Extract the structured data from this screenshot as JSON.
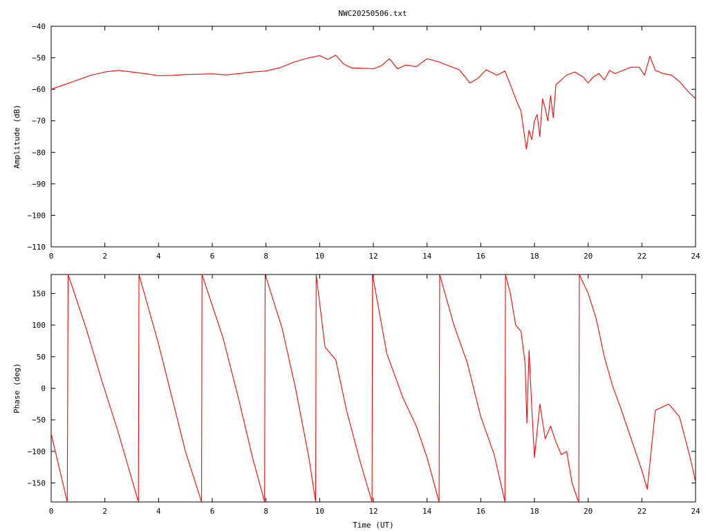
{
  "title": "NWC20250506.txt",
  "colors": {
    "trace": "#ff0000",
    "axes": "#000000",
    "background": "#ffffff"
  },
  "chart_data": [
    {
      "type": "line",
      "ylabel": "Amplitude (dB)",
      "xlabel": "",
      "xlim": [
        0,
        24
      ],
      "ylim": [
        -110,
        -40
      ],
      "x_ticks": [
        0,
        2,
        4,
        6,
        8,
        10,
        12,
        14,
        16,
        18,
        20,
        22,
        24
      ],
      "y_ticks": [
        -40,
        -50,
        -60,
        -70,
        -80,
        -90,
        -100,
        -110
      ],
      "x_tick_labels": [
        "0",
        "2",
        "4",
        "6",
        "8",
        "10",
        "12",
        "14",
        "16",
        "18",
        "20",
        "22",
        "24"
      ],
      "y_tick_labels": [
        "−40",
        "−50",
        "−60",
        "−70",
        "−80",
        "−90",
        "−100",
        "−110"
      ],
      "grid": false,
      "series": [
        {
          "x": [
            0,
            0.5,
            1,
            1.5,
            2,
            2.5,
            3,
            3.5,
            4,
            4.5,
            5,
            5.5,
            6,
            6.5,
            7,
            7.5,
            8,
            8.5,
            9,
            9.5,
            10,
            10.3,
            10.6,
            10.9,
            11.2,
            11.5,
            12,
            12.3,
            12.6,
            12.9,
            13.2,
            13.6,
            14,
            14.4,
            14.8,
            15.2,
            15.6,
            15.9,
            16.2,
            16.6,
            16.9,
            17.1,
            17.3,
            17.5,
            17.7,
            17.8,
            17.9,
            18.0,
            18.1,
            18.2,
            18.3,
            18.4,
            18.5,
            18.6,
            18.7,
            18.8,
            19.0,
            19.2,
            19.5,
            19.8,
            20.0,
            20.2,
            20.4,
            20.6,
            20.8,
            21.0,
            21.3,
            21.6,
            21.9,
            22.1,
            22.3,
            22.5,
            22.8,
            23.1,
            23.4,
            23.7,
            24
          ],
          "y": [
            -60,
            -58.5,
            -57,
            -55.5,
            -54.5,
            -54,
            -54.5,
            -55,
            -55.7,
            -55.6,
            -55.3,
            -55.2,
            -55.1,
            -55.4,
            -55,
            -54.5,
            -54.2,
            -53.2,
            -51.5,
            -50.2,
            -49.3,
            -50.5,
            -49.2,
            -52,
            -53.2,
            -53.3,
            -53.5,
            -52.5,
            -50.3,
            -53.5,
            -52.3,
            -52.8,
            -50.3,
            -51.2,
            -52.5,
            -53.8,
            -58,
            -56.5,
            -53.8,
            -55.5,
            -54.2,
            -58.5,
            -63,
            -67,
            -79,
            -73,
            -76,
            -70,
            -68,
            -75,
            -63,
            -66,
            -70,
            -62,
            -69,
            -58.5,
            -57,
            -55.5,
            -54.5,
            -56,
            -58,
            -56,
            -55,
            -57,
            -54,
            -55,
            -54,
            -53,
            -53,
            -55.5,
            -49.5,
            -54,
            -55,
            -55.5,
            -57.5,
            -60.5,
            -63
          ]
        }
      ]
    },
    {
      "type": "line",
      "ylabel": "Phase (deg)",
      "xlabel": "Time (UT)",
      "xlim": [
        0,
        24
      ],
      "ylim": [
        -180,
        180
      ],
      "x_ticks": [
        0,
        2,
        4,
        6,
        8,
        10,
        12,
        14,
        16,
        18,
        20,
        22,
        24
      ],
      "y_ticks": [
        150,
        100,
        50,
        0,
        -50,
        -100,
        -150
      ],
      "x_tick_labels": [
        "0",
        "2",
        "4",
        "6",
        "8",
        "10",
        "12",
        "14",
        "16",
        "18",
        "20",
        "22",
        "24"
      ],
      "y_tick_labels": [
        "150",
        "100",
        "50",
        "0",
        "−50",
        "−100",
        "−150"
      ],
      "grid": false,
      "series": [
        {
          "segments": [
            {
              "x": [
                0,
                0.6
              ],
              "y": [
                -72,
                -180
              ]
            },
            {
              "x": [
                0.6,
                0.63,
                1.3,
                1.9,
                2.5,
                3.25
              ],
              "y": [
                -180,
                180,
                95,
                10,
                -70,
                -180
              ]
            },
            {
              "x": [
                3.25,
                3.27,
                4.0,
                4.5,
                5.0,
                5.6
              ],
              "y": [
                -180,
                180,
                70,
                -15,
                -100,
                -180
              ]
            },
            {
              "x": [
                5.6,
                5.62,
                6.4,
                7.0,
                7.5,
                7.95
              ],
              "y": [
                -180,
                180,
                80,
                -20,
                -110,
                -180
              ]
            },
            {
              "x": [
                7.95,
                7.97,
                8.6,
                9.1,
                9.6,
                9.85
              ],
              "y": [
                -180,
                180,
                95,
                0,
                -110,
                -180
              ]
            },
            {
              "x": [
                9.85,
                9.87,
                10.2,
                10.6,
                11.0,
                11.5,
                11.95
              ],
              "y": [
                -180,
                180,
                65,
                45,
                -35,
                -115,
                -180
              ]
            },
            {
              "x": [
                11.95,
                11.97,
                12.5,
                13.1,
                13.6,
                14.0,
                14.45
              ],
              "y": [
                -180,
                180,
                55,
                -15,
                -60,
                -110,
                -180
              ]
            },
            {
              "x": [
                14.45,
                14.47,
                15.0,
                15.5,
                16.0,
                16.5,
                16.9
              ],
              "y": [
                -180,
                180,
                100,
                40,
                -45,
                -105,
                -180
              ]
            },
            {
              "x": [
                16.9,
                16.92,
                17.1,
                17.3,
                17.5,
                17.65,
                17.72,
                17.8,
                17.9,
                18.0,
                18.2,
                18.4,
                18.6,
                18.8,
                19.0,
                19.2,
                19.4,
                19.6,
                19.65
              ],
              "y": [
                -180,
                180,
                150,
                100,
                90,
                40,
                -55,
                60,
                -30,
                -110,
                -25,
                -80,
                -60,
                -85,
                -105,
                -100,
                -150,
                -175,
                -180
              ]
            },
            {
              "x": [
                19.65,
                19.67,
                20.0,
                20.3,
                20.6,
                20.9,
                21.2,
                21.6,
                22.0,
                22.2,
                22.5,
                23.0,
                23.4,
                23.8,
                24
              ],
              "y": [
                -180,
                180,
                150,
                110,
                50,
                5,
                -30,
                -80,
                -130,
                -160,
                -35,
                -25,
                -45,
                -110,
                -148
              ]
            }
          ]
        }
      ]
    }
  ]
}
